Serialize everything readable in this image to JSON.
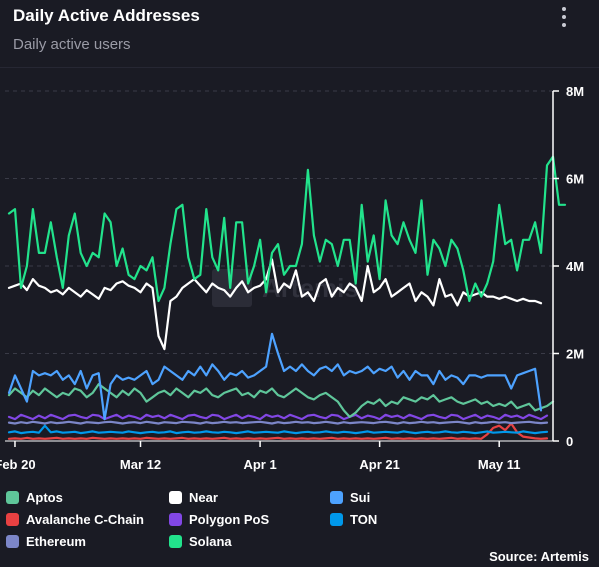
{
  "header": {
    "title": "Daily Active Addresses",
    "subtitle": "Daily active users"
  },
  "watermark": "Artemis",
  "footer": {
    "source": "Source: Artemis"
  },
  "colors": {
    "background": "#1a1b24",
    "grid": "#3a3b47"
  },
  "chart_data": {
    "type": "line",
    "title": "Daily Active Addresses",
    "subtitle": "Daily active users",
    "x_start": "2024-02-19",
    "x_ticks": [
      {
        "label": "Feb 20",
        "index": 1
      },
      {
        "label": "Mar 12",
        "index": 22
      },
      {
        "label": "Apr 1",
        "index": 42
      },
      {
        "label": "Apr 21",
        "index": 62
      },
      {
        "label": "May 11",
        "index": 82
      }
    ],
    "y_axis": {
      "position": "right",
      "ylim": [
        0,
        8000000
      ],
      "ticks": [
        {
          "value": 0,
          "label": "0"
        },
        {
          "value": 2000000,
          "label": "2M"
        },
        {
          "value": 4000000,
          "label": "4M"
        },
        {
          "value": 6000000,
          "label": "6M"
        },
        {
          "value": 8000000,
          "label": "8M"
        }
      ]
    },
    "grid": "horizontal-dashed",
    "legend_placement": "bottom",
    "series": [
      {
        "name": "Aptos",
        "color": "#5fc69a",
        "values": [
          1.05,
          1.2,
          1.1,
          1.0,
          1.15,
          1.05,
          1.2,
          1.1,
          1.0,
          1.1,
          1.05,
          1.2,
          1.15,
          1.0,
          1.1,
          1.3,
          1.2,
          1.1,
          1.0,
          1.15,
          1.05,
          1.2,
          1.1,
          0.9,
          1.0,
          1.1,
          1.15,
          1.05,
          1.2,
          1.1,
          1.0,
          1.15,
          1.1,
          1.2,
          1.05,
          1.0,
          1.1,
          1.15,
          1.2,
          1.05,
          1.1,
          1.0,
          1.15,
          1.1,
          1.2,
          1.05,
          1.0,
          1.1,
          1.2,
          1.1,
          1.0,
          0.95,
          1.05,
          1.1,
          1.0,
          0.9,
          0.7,
          0.55,
          0.65,
          0.8,
          0.9,
          0.85,
          0.95,
          0.8,
          0.9,
          0.85,
          1.0,
          0.95,
          0.9,
          1.0,
          0.95,
          1.05,
          0.9,
          0.95,
          1.0,
          0.9,
          0.85,
          0.9,
          0.95,
          0.85,
          0.9,
          0.8,
          0.85,
          0.8,
          0.9,
          0.75,
          0.8,
          0.85,
          0.7,
          0.75,
          0.8,
          0.9
        ]
      },
      {
        "name": "Avalanche C-Chain",
        "color": "#e84142",
        "values": [
          0.05,
          0.06,
          0.05,
          0.07,
          0.05,
          0.06,
          0.05,
          0.06,
          0.07,
          0.05,
          0.06,
          0.05,
          0.06,
          0.05,
          0.07,
          0.06,
          0.05,
          0.06,
          0.05,
          0.06,
          0.05,
          0.06,
          0.05,
          0.07,
          0.06,
          0.05,
          0.06,
          0.05,
          0.06,
          0.07,
          0.05,
          0.06,
          0.05,
          0.06,
          0.05,
          0.06,
          0.07,
          0.05,
          0.06,
          0.05,
          0.06,
          0.05,
          0.06,
          0.05,
          0.06,
          0.07,
          0.05,
          0.06,
          0.05,
          0.06,
          0.05,
          0.06,
          0.05,
          0.06,
          0.07,
          0.05,
          0.06,
          0.05,
          0.06,
          0.05,
          0.06,
          0.05,
          0.06,
          0.07,
          0.05,
          0.06,
          0.05,
          0.06,
          0.05,
          0.06,
          0.05,
          0.06,
          0.05,
          0.06,
          0.07,
          0.05,
          0.06,
          0.05,
          0.06,
          0.05,
          0.15,
          0.3,
          0.35,
          0.25,
          0.4,
          0.2,
          0.1,
          0.08,
          0.06,
          0.05,
          0.06
        ]
      },
      {
        "name": "Ethereum",
        "color": "#7c86c8",
        "values": [
          0.42,
          0.4,
          0.43,
          0.41,
          0.44,
          0.42,
          0.4,
          0.43,
          0.41,
          0.42,
          0.44,
          0.42,
          0.4,
          0.43,
          0.42,
          0.41,
          0.43,
          0.44,
          0.42,
          0.4,
          0.42,
          0.43,
          0.41,
          0.44,
          0.42,
          0.4,
          0.43,
          0.42,
          0.41,
          0.44,
          0.43,
          0.42,
          0.4,
          0.43,
          0.41,
          0.42,
          0.44,
          0.42,
          0.43,
          0.41,
          0.42,
          0.43,
          0.44,
          0.42,
          0.4,
          0.43,
          0.41,
          0.42,
          0.44,
          0.42,
          0.43,
          0.41,
          0.42,
          0.44,
          0.42,
          0.4,
          0.43,
          0.41,
          0.42,
          0.43,
          0.42,
          0.41,
          0.43,
          0.44,
          0.42,
          0.4,
          0.43,
          0.41,
          0.42,
          0.44,
          0.42,
          0.43,
          0.41,
          0.42,
          0.43,
          0.44,
          0.42,
          0.4,
          0.43,
          0.41,
          0.42,
          0.44,
          0.42,
          0.43,
          0.41,
          0.42,
          0.43,
          0.44,
          0.42,
          0.41,
          0.42
        ]
      },
      {
        "name": "Near",
        "color": "#ffffff",
        "values": [
          3.5,
          3.55,
          3.6,
          3.45,
          3.7,
          3.55,
          3.5,
          3.4,
          3.45,
          3.35,
          3.5,
          3.4,
          3.3,
          3.45,
          3.35,
          3.25,
          3.5,
          3.45,
          3.6,
          3.65,
          3.55,
          3.5,
          3.4,
          3.6,
          3.5,
          2.4,
          2.1,
          3.2,
          3.3,
          3.5,
          3.6,
          3.7,
          3.55,
          3.4,
          3.6,
          3.5,
          3.45,
          3.3,
          3.5,
          3.65,
          3.4,
          3.5,
          3.55,
          3.7,
          4.15,
          3.4,
          3.6,
          3.5,
          3.9,
          3.3,
          3.4,
          3.2,
          3.6,
          3.7,
          3.3,
          3.5,
          3.4,
          3.6,
          3.5,
          3.2,
          4.0,
          3.4,
          3.5,
          3.7,
          3.3,
          3.4,
          3.5,
          3.6,
          3.2,
          3.4,
          3.3,
          3.1,
          3.7,
          3.3,
          3.35,
          3.1,
          3.4,
          3.3,
          3.35,
          3.4,
          3.3,
          3.3,
          3.25,
          3.3,
          3.25,
          3.2,
          3.25,
          3.2,
          3.2,
          3.15
        ]
      },
      {
        "name": "Polygon PoS",
        "color": "#8247e5",
        "values": [
          0.55,
          0.5,
          0.6,
          0.55,
          0.5,
          0.58,
          0.52,
          0.6,
          0.55,
          0.5,
          0.58,
          0.6,
          0.55,
          0.52,
          0.6,
          0.58,
          0.5,
          0.55,
          0.6,
          0.52,
          0.58,
          0.55,
          0.5,
          0.6,
          0.55,
          0.58,
          0.52,
          0.6,
          0.55,
          0.5,
          0.58,
          0.6,
          0.55,
          0.52,
          0.6,
          0.58,
          0.5,
          0.55,
          0.6,
          0.52,
          0.58,
          0.55,
          0.5,
          0.6,
          0.55,
          0.58,
          0.52,
          0.6,
          0.55,
          0.5,
          0.58,
          0.6,
          0.55,
          0.52,
          0.6,
          0.58,
          0.5,
          0.55,
          0.6,
          0.52,
          0.58,
          0.55,
          0.5,
          0.6,
          0.55,
          0.58,
          0.52,
          0.6,
          0.55,
          0.5,
          0.58,
          0.6,
          0.55,
          0.52,
          0.6,
          0.58,
          0.5,
          0.55,
          0.6,
          0.52,
          0.58,
          0.55,
          0.5,
          0.6,
          0.55,
          0.58,
          0.52,
          0.6,
          0.55,
          0.5,
          0.58
        ]
      },
      {
        "name": "Solana",
        "color": "#22e38c",
        "values": [
          5.2,
          5.3,
          3.5,
          4.0,
          5.3,
          4.3,
          4.3,
          5.0,
          4.2,
          3.5,
          4.7,
          5.2,
          4.3,
          4.0,
          4.3,
          4.2,
          5.2,
          5.0,
          4.0,
          4.4,
          3.8,
          3.7,
          4.0,
          3.9,
          4.2,
          3.2,
          3.5,
          4.5,
          5.3,
          5.4,
          4.2,
          3.7,
          3.8,
          5.3,
          4.2,
          3.9,
          5.1,
          3.5,
          5.0,
          5.0,
          3.6,
          4.0,
          4.6,
          3.4,
          4.3,
          4.5,
          3.8,
          4.0,
          4.0,
          4.5,
          6.2,
          4.7,
          4.1,
          4.6,
          4.5,
          4.0,
          4.6,
          4.6,
          3.6,
          5.4,
          4.1,
          4.7,
          3.7,
          5.5,
          4.7,
          4.5,
          5.0,
          4.6,
          4.3,
          5.5,
          3.8,
          4.6,
          4.4,
          4.0,
          4.6,
          4.4,
          3.9,
          3.2,
          3.6,
          3.3,
          3.6,
          4.1,
          5.4,
          4.5,
          4.6,
          3.9,
          4.6,
          4.6,
          5.0,
          4.3,
          6.3,
          6.5,
          5.4,
          5.4
        ]
      },
      {
        "name": "Sui",
        "color": "#4da2ff",
        "values": [
          1.1,
          1.5,
          1.2,
          0.9,
          1.6,
          1.5,
          1.55,
          1.5,
          1.6,
          1.4,
          1.5,
          1.3,
          1.6,
          1.2,
          1.5,
          1.55,
          0.5,
          1.3,
          1.5,
          1.4,
          1.45,
          1.4,
          1.5,
          1.6,
          1.3,
          1.4,
          1.7,
          1.6,
          1.5,
          1.4,
          1.6,
          1.5,
          1.7,
          1.5,
          1.75,
          1.6,
          1.4,
          1.55,
          1.5,
          1.6,
          1.45,
          1.5,
          1.6,
          1.7,
          2.45,
          2.0,
          1.6,
          1.7,
          1.6,
          1.75,
          1.6,
          1.5,
          1.65,
          1.7,
          1.6,
          1.75,
          1.5,
          1.6,
          1.55,
          1.6,
          1.7,
          1.55,
          1.65,
          1.6,
          1.7,
          1.45,
          1.6,
          1.4,
          1.6,
          1.5,
          1.5,
          1.3,
          1.6,
          1.4,
          1.5,
          1.45,
          1.3,
          1.5,
          1.5,
          1.45,
          1.5,
          1.5,
          1.5,
          1.5,
          1.2,
          1.5,
          1.55,
          1.6,
          1.65,
          0.7
        ]
      },
      {
        "name": "TON",
        "color": "#0098ea",
        "values": [
          0.2,
          0.22,
          0.18,
          0.2,
          0.21,
          0.19,
          0.35,
          0.2,
          0.22,
          0.19,
          0.2,
          0.21,
          0.18,
          0.2,
          0.22,
          0.19,
          0.2,
          0.21,
          0.2,
          0.19,
          0.22,
          0.2,
          0.18,
          0.2,
          0.21,
          0.19,
          0.2,
          0.22,
          0.18,
          0.2,
          0.21,
          0.19,
          0.2,
          0.22,
          0.2,
          0.19,
          0.21,
          0.2,
          0.18,
          0.2,
          0.22,
          0.19,
          0.2,
          0.21,
          0.2,
          0.19,
          0.22,
          0.2,
          0.18,
          0.2,
          0.21,
          0.19,
          0.2,
          0.22,
          0.2,
          0.19,
          0.21,
          0.2,
          0.18,
          0.2,
          0.22,
          0.19,
          0.2,
          0.21,
          0.2,
          0.19,
          0.22,
          0.2,
          0.18,
          0.2,
          0.21,
          0.19,
          0.2,
          0.22,
          0.2,
          0.19,
          0.21,
          0.2,
          0.18,
          0.2,
          0.22,
          0.19,
          0.2,
          0.21,
          0.2,
          0.19,
          0.22,
          0.2,
          0.18,
          0.2,
          0.21
        ]
      }
    ],
    "value_unit_multiplier": 1000000
  },
  "legend": [
    {
      "name": "Aptos",
      "color": "#5fc69a"
    },
    {
      "name": "Avalanche C-Chain",
      "color": "#e84142"
    },
    {
      "name": "Ethereum",
      "color": "#7c86c8"
    },
    {
      "name": "Near",
      "color": "#ffffff"
    },
    {
      "name": "Polygon PoS",
      "color": "#8247e5"
    },
    {
      "name": "Solana",
      "color": "#22e38c"
    },
    {
      "name": "Sui",
      "color": "#4da2ff"
    },
    {
      "name": "TON",
      "color": "#0098ea"
    }
  ]
}
